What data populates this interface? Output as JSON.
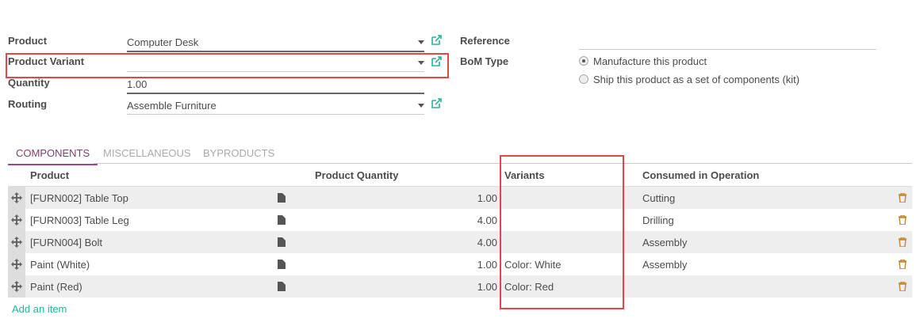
{
  "form": {
    "product": {
      "label": "Product",
      "value": "Computer Desk"
    },
    "product_variant": {
      "label": "Product Variant",
      "value": ""
    },
    "quantity": {
      "label": "Quantity",
      "value": "1.00"
    },
    "routing": {
      "label": "Routing",
      "value": "Assemble Furniture"
    },
    "reference": {
      "label": "Reference",
      "value": ""
    },
    "bom_type": {
      "label": "BoM Type",
      "options": [
        {
          "label": "Manufacture this product",
          "selected": true
        },
        {
          "label": "Ship this product as a set of components (kit)",
          "selected": false
        }
      ]
    }
  },
  "tabs": [
    {
      "label": "COMPONENTS",
      "active": true
    },
    {
      "label": "MISCELLANEOUS",
      "active": false
    },
    {
      "label": "BYPRODUCTS",
      "active": false
    }
  ],
  "table": {
    "headers": {
      "product": "Product",
      "quantity": "Product Quantity",
      "variants": "Variants",
      "operation": "Consumed in Operation"
    },
    "rows": [
      {
        "product": "[FURN002] Table Top",
        "quantity": "1.00",
        "variants": "",
        "operation": "Cutting"
      },
      {
        "product": "[FURN003] Table Leg",
        "quantity": "4.00",
        "variants": "",
        "operation": "Drilling"
      },
      {
        "product": "[FURN004] Bolt",
        "quantity": "4.00",
        "variants": "",
        "operation": "Assembly"
      },
      {
        "product": "Paint (White)",
        "quantity": "1.00",
        "variants": "Color: White",
        "operation": "Assembly"
      },
      {
        "product": "Paint (Red)",
        "quantity": "1.00",
        "variants": "Color: Red",
        "operation": ""
      }
    ],
    "add_item": "Add an item"
  },
  "colors": {
    "accent": "#a24689",
    "link": "#00a09d",
    "highlight": "#e04848"
  }
}
